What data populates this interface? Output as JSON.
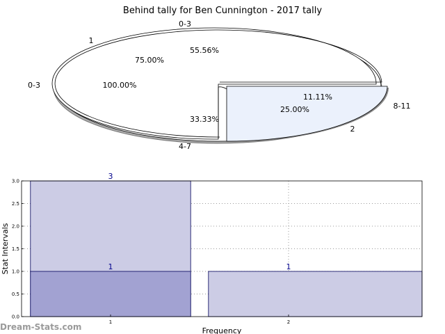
{
  "chart_data": [
    {
      "type": "pie",
      "title": "Behind tally for Ben Cunnington - 2017 tally",
      "rings": [
        {
          "name": "outer",
          "slices": [
            {
              "label": "0-3",
              "percent_label": "55.56%",
              "value": 55.56,
              "color": "#ffffff"
            },
            {
              "label": "4-7",
              "percent_label": "33.33%",
              "value": 33.33,
              "color": "#ffffff"
            },
            {
              "label": "8-11",
              "percent_label": "11.11%",
              "value": 11.11,
              "color": "#ebf1fc"
            }
          ]
        },
        {
          "name": "inner",
          "slices": [
            {
              "label": "0-3",
              "percent_label": "100.00%",
              "value": 100.0,
              "color": "#ffffff"
            }
          ]
        },
        {
          "name": "middle",
          "slices": [
            {
              "label": "1",
              "percent_label": "75.00%",
              "value": 75.0,
              "color": "#ffffff"
            },
            {
              "label": "2",
              "percent_label": "25.00%",
              "value": 25.0,
              "color": "#ebf1fc"
            }
          ]
        }
      ]
    },
    {
      "type": "bar",
      "xlabel": "Frequency",
      "ylabel": "Stat Intervals",
      "ylim": [
        0,
        3.0
      ],
      "yticks": [
        "0.0",
        "0.5",
        "1.0",
        "1.5",
        "2.0",
        "2.5",
        "3.0"
      ],
      "xticks": [
        "1",
        "2"
      ],
      "grid": true,
      "bars": [
        {
          "x": 1,
          "value": 3,
          "label": "3",
          "color": "#ccccE5"
        },
        {
          "x": 1,
          "value": 1,
          "label": "1",
          "color": "#a2a2d2"
        },
        {
          "x": 2,
          "value": 1,
          "label": "1",
          "color": "#ccccE5"
        }
      ]
    }
  ],
  "watermark": "Dream-Stats.com"
}
